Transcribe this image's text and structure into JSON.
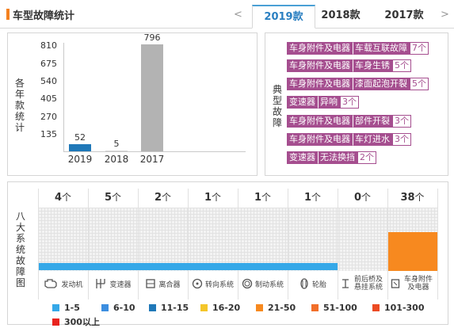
{
  "header": {
    "title": "车型故障统计",
    "prev_arrow": "<",
    "next_arrow": ">",
    "tabs": [
      {
        "label": "2019款",
        "active": true
      },
      {
        "label": "2018款",
        "active": false
      },
      {
        "label": "2017款",
        "active": false
      }
    ]
  },
  "chart": {
    "ylabel": "各年款统计",
    "yticks": [
      "810",
      "675",
      "540",
      "405",
      "270",
      "135"
    ],
    "colors": {
      "2019": "#1f78b8",
      "2018": "#d9d9d9",
      "2017": "#b3b3b3"
    }
  },
  "chart_data": {
    "type": "bar",
    "categories": [
      "2019",
      "2018",
      "2017"
    ],
    "values": [
      52,
      5,
      796
    ],
    "value_labels": [
      "52",
      "5",
      "796"
    ],
    "title": "",
    "xlabel": "",
    "ylabel": "各年款统计",
    "ylim": [
      0,
      810
    ]
  },
  "typical": {
    "label": "典型故障",
    "items": [
      {
        "component": "车身附件及电器",
        "problem": "车载互联故障",
        "count": "7个"
      },
      {
        "component": "车身附件及电器",
        "problem": "车身生锈",
        "count": "5个"
      },
      {
        "component": "车身附件及电器",
        "problem": "漆面起泡开裂",
        "count": "5个"
      },
      {
        "component": "变速器",
        "problem": "异响",
        "count": "3个"
      },
      {
        "component": "车身附件及电器",
        "problem": "部件开裂",
        "count": "3个"
      },
      {
        "component": "车身附件及电器",
        "problem": "车灯进水",
        "count": "3个"
      },
      {
        "component": "变速器",
        "problem": "无法换挡",
        "count": "2个"
      }
    ]
  },
  "systems": {
    "label": "八大系统故障图",
    "unit": "个",
    "items": [
      {
        "name": "发动机",
        "count": "4",
        "icon": "engine-icon"
      },
      {
        "name": "变速器",
        "count": "5",
        "icon": "gearbox-icon"
      },
      {
        "name": "离合器",
        "count": "2",
        "icon": "clutch-icon"
      },
      {
        "name": "转向系统",
        "count": "1",
        "icon": "steering-icon"
      },
      {
        "name": "制动系统",
        "count": "1",
        "icon": "brake-icon"
      },
      {
        "name": "轮胎",
        "count": "1",
        "icon": "tire-icon"
      },
      {
        "name": "前后桥及悬挂系统",
        "count": "0",
        "icon": "suspension-icon"
      },
      {
        "name": "车身附件及电器",
        "count": "38",
        "icon": "body-electrics-icon"
      }
    ],
    "bar_colors": {
      "low": "#35a8e8",
      "high": "#f7891f"
    }
  },
  "legend": [
    {
      "label": "1-5",
      "color": "#35a8e8"
    },
    {
      "label": "6-10",
      "color": "#3c8ee0"
    },
    {
      "label": "11-15",
      "color": "#1f78b8"
    },
    {
      "label": "16-20",
      "color": "#f4c62a"
    },
    {
      "label": "21-50",
      "color": "#f7891f"
    },
    {
      "label": "51-100",
      "color": "#f26f2a"
    },
    {
      "label": "101-300",
      "color": "#ec4b23"
    },
    {
      "label": "300以上",
      "color": "#e8231e"
    }
  ]
}
